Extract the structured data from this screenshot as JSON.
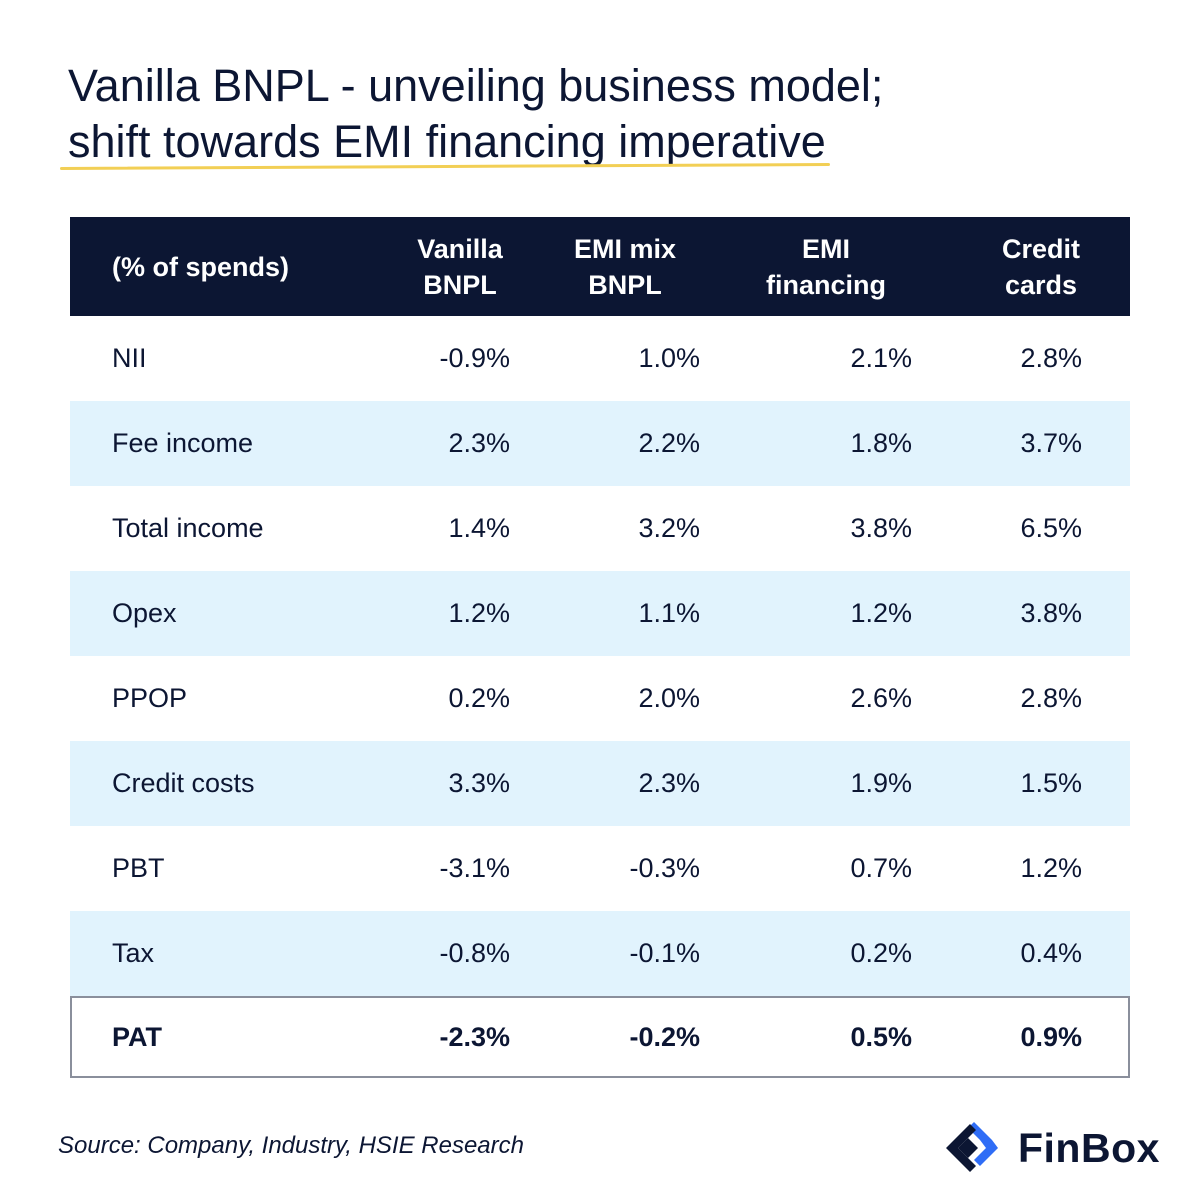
{
  "title": {
    "line1": "Vanilla BNPL - unveiling business model;",
    "line2": "shift towards EMI financing imperative"
  },
  "chart_data": {
    "type": "table",
    "columns": [
      "(% of spends)",
      "Vanilla BNPL",
      "EMI mix BNPL",
      "EMI financing",
      "Credit cards"
    ],
    "header_lines": [
      [
        "(% of spends)"
      ],
      [
        "Vanilla",
        "BNPL"
      ],
      [
        "EMI mix",
        "BNPL"
      ],
      [
        "EMI",
        "financing"
      ],
      [
        "Credit",
        "cards"
      ]
    ],
    "rows": [
      {
        "label": "NII",
        "values": [
          "-0.9%",
          "1.0%",
          "2.1%",
          "2.8%"
        ]
      },
      {
        "label": "Fee income",
        "values": [
          "2.3%",
          "2.2%",
          "1.8%",
          "3.7%"
        ]
      },
      {
        "label": "Total income",
        "values": [
          "1.4%",
          "3.2%",
          "3.8%",
          "6.5%"
        ]
      },
      {
        "label": "Opex",
        "values": [
          "1.2%",
          "1.1%",
          "1.2%",
          "3.8%"
        ]
      },
      {
        "label": "PPOP",
        "values": [
          "0.2%",
          "2.0%",
          "2.6%",
          "2.8%"
        ]
      },
      {
        "label": "Credit costs",
        "values": [
          "3.3%",
          "2.3%",
          "1.9%",
          "1.5%"
        ]
      },
      {
        "label": "PBT",
        "values": [
          "-3.1%",
          "-0.3%",
          "0.7%",
          "1.2%"
        ]
      },
      {
        "label": "Tax",
        "values": [
          "-0.8%",
          "-0.1%",
          "0.2%",
          "0.4%"
        ]
      },
      {
        "label": "PAT",
        "values": [
          "-2.3%",
          "-0.2%",
          "0.5%",
          "0.9%"
        ]
      }
    ]
  },
  "source": "Source: Company, Industry, HSIE Research",
  "brand": {
    "name": "FinBox",
    "icon": "finbox-logo-icon"
  },
  "colors": {
    "header_bg": "#0c1633",
    "alt_row_bg": "#e1f3fd",
    "text": "#0c1633",
    "accent_underline": "#f2cf55",
    "logo_blue": "#2f6df6"
  }
}
